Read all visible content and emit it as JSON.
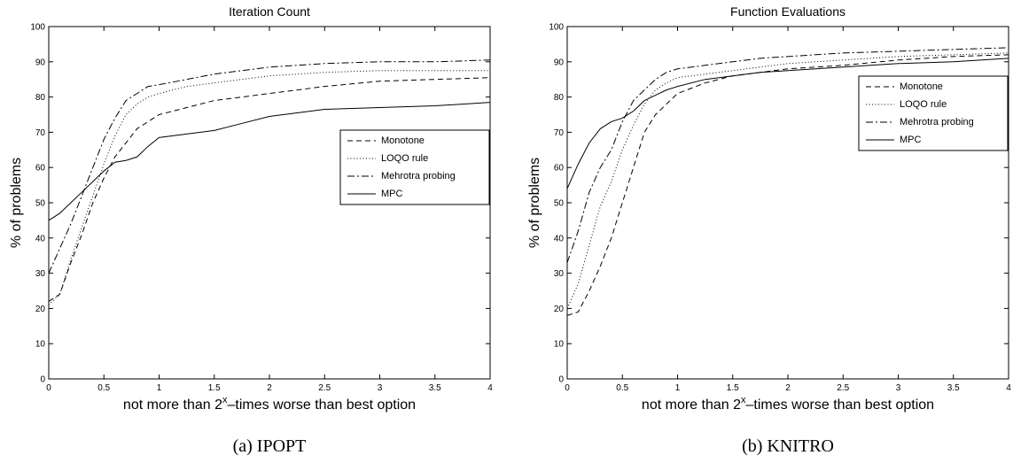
{
  "chart_data": [
    {
      "type": "line",
      "title": "Iteration Count",
      "xlabel": [
        "not more than 2",
        "x",
        "–times worse than best option"
      ],
      "ylabel": "% of problems",
      "caption": "(a) IPOPT",
      "x": [
        0,
        0.1,
        0.2,
        0.3,
        0.4,
        0.5,
        0.6,
        0.7,
        0.8,
        0.9,
        1,
        1.25,
        1.5,
        1.75,
        2,
        2.5,
        3,
        3.5,
        4
      ],
      "xlim": [
        0,
        4
      ],
      "xticks": [
        0,
        0.5,
        1,
        1.5,
        2,
        2.5,
        3,
        3.5,
        4
      ],
      "ylim": [
        0,
        100
      ],
      "yticks": [
        0,
        10,
        20,
        30,
        40,
        50,
        60,
        70,
        80,
        90,
        100
      ],
      "legend": "center right",
      "series": [
        {
          "name": "Monotone",
          "color": "#000000",
          "style": "dashed",
          "values": [
            22,
            24,
            33,
            41,
            50,
            57,
            63,
            67,
            71,
            73,
            75,
            77,
            79,
            80,
            81,
            83,
            84.5,
            85,
            85.5
          ]
        },
        {
          "name": "LOQO rule",
          "color": "#000000",
          "style": "dotted",
          "values": [
            21,
            24,
            34,
            43,
            52,
            61,
            69,
            75,
            78,
            80,
            81,
            83,
            84,
            85,
            86,
            87,
            87.5,
            87.5,
            87.5
          ]
        },
        {
          "name": "Mehrotra probing",
          "color": "#000000",
          "style": "dashdot",
          "values": [
            30,
            37,
            44,
            52,
            60,
            68,
            74,
            79,
            81,
            83,
            83.5,
            85,
            86.5,
            87.5,
            88.5,
            89.5,
            90,
            90,
            90.5
          ]
        },
        {
          "name": "MPC",
          "color": "#000000",
          "style": "solid",
          "values": [
            45,
            47,
            50,
            53,
            56,
            59,
            61.5,
            62,
            63,
            66,
            68.5,
            69.5,
            70.5,
            72.5,
            74.5,
            76.5,
            77,
            77.5,
            78.5
          ]
        }
      ]
    },
    {
      "type": "line",
      "title": "Function Evaluations",
      "xlabel": [
        "not more than 2",
        "x",
        "–times worse than best option"
      ],
      "ylabel": "% of problems",
      "caption": "(b) KNITRO",
      "x": [
        0,
        0.1,
        0.2,
        0.3,
        0.4,
        0.5,
        0.6,
        0.7,
        0.8,
        0.9,
        1,
        1.25,
        1.5,
        1.75,
        2,
        2.5,
        3,
        3.5,
        4
      ],
      "xlim": [
        0,
        4
      ],
      "xticks": [
        0,
        0.5,
        1,
        1.5,
        2,
        2.5,
        3,
        3.5,
        4
      ],
      "ylim": [
        0,
        100
      ],
      "yticks": [
        0,
        10,
        20,
        30,
        40,
        50,
        60,
        70,
        80,
        90,
        100
      ],
      "legend": "upper right",
      "series": [
        {
          "name": "Monotone",
          "color": "#000000",
          "style": "dashed",
          "values": [
            18,
            19,
            25,
            32,
            40,
            50,
            60,
            70,
            75,
            78,
            81,
            84,
            86,
            87,
            88,
            89,
            90.5,
            91.5,
            92
          ]
        },
        {
          "name": "LOQO rule",
          "color": "#000000",
          "style": "dotted",
          "values": [
            20,
            27,
            38,
            49,
            56,
            65,
            72,
            78,
            82,
            84,
            85.5,
            86.5,
            87.5,
            88.5,
            89.5,
            90.5,
            91.5,
            92,
            92.5
          ]
        },
        {
          "name": "Mehrotra probing",
          "color": "#000000",
          "style": "dashdot",
          "values": [
            33,
            42,
            53,
            60,
            65,
            73,
            79,
            82,
            85,
            87,
            88,
            89,
            90,
            91,
            91.5,
            92.5,
            93,
            93.5,
            94
          ]
        },
        {
          "name": "MPC",
          "color": "#000000",
          "style": "solid",
          "values": [
            54,
            61,
            67,
            71,
            73,
            74,
            76,
            79,
            80.5,
            82,
            83,
            85,
            86,
            87,
            87.5,
            88.5,
            89.5,
            90,
            91
          ]
        }
      ]
    }
  ]
}
